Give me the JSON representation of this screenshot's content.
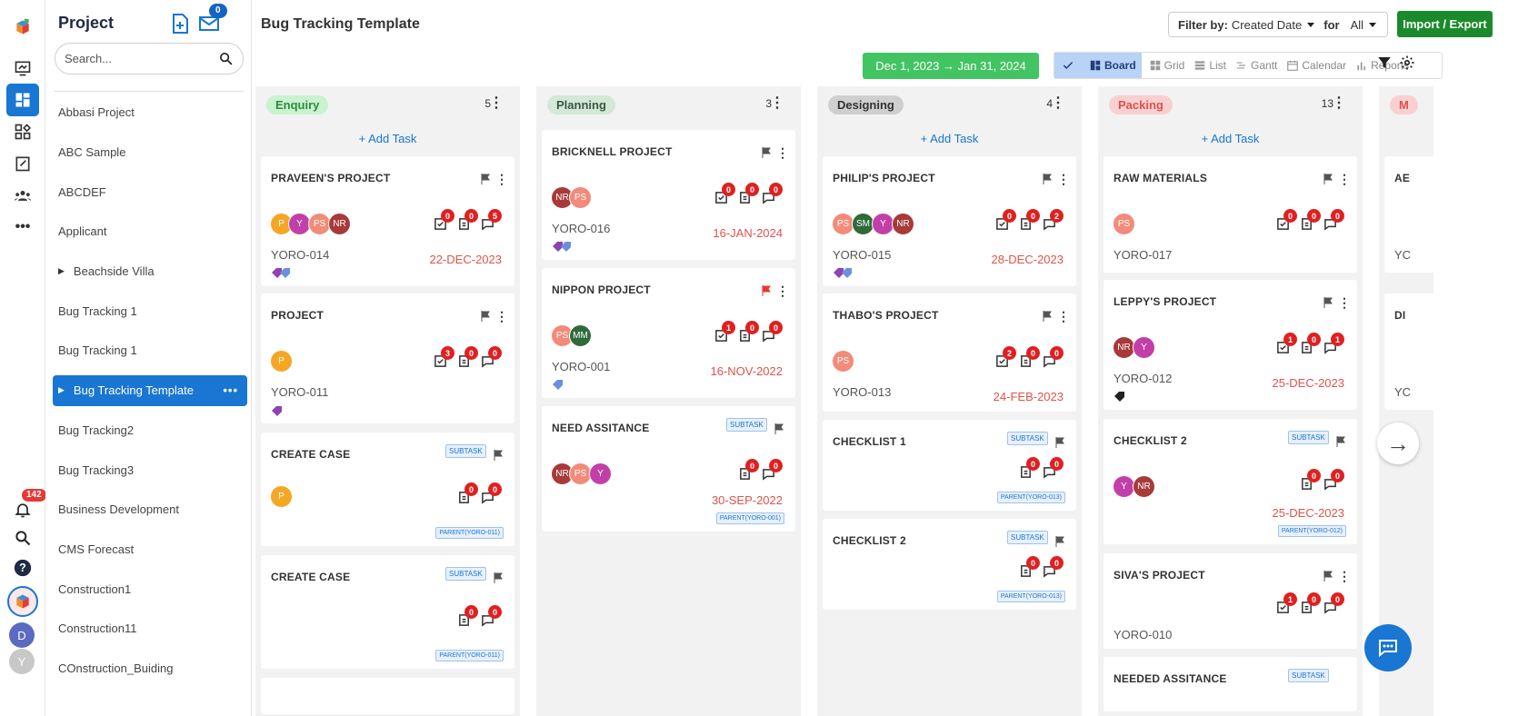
{
  "rail": {
    "notification_count": "142",
    "user_avatar_d": "D",
    "user_avatar_y": "Y"
  },
  "sidebar": {
    "title": "Project",
    "mail_count": "0",
    "search_placeholder": "Search...",
    "projects": [
      {
        "label": "Abbasi Project",
        "expandable": false
      },
      {
        "label": "ABC Sample",
        "expandable": false
      },
      {
        "label": "ABCDEF",
        "expandable": false
      },
      {
        "label": "Applicant",
        "expandable": false
      },
      {
        "label": "Beachside Villa",
        "expandable": true
      },
      {
        "label": "Bug Tracking 1",
        "expandable": false
      },
      {
        "label": "Bug Tracking 1",
        "expandable": false
      },
      {
        "label": "Bug Tracking Template",
        "expandable": true,
        "active": true
      },
      {
        "label": "Bug Tracking2",
        "expandable": false
      },
      {
        "label": "Bug Tracking3",
        "expandable": false
      },
      {
        "label": "Business Development",
        "expandable": false
      },
      {
        "label": "CMS Forecast",
        "expandable": false
      },
      {
        "label": "Construction1",
        "expandable": false
      },
      {
        "label": "Construction11",
        "expandable": false
      },
      {
        "label": "COnstruction_Buiding",
        "expandable": false
      }
    ]
  },
  "header": {
    "title": "Bug Tracking Template",
    "filter_label": "Filter by:",
    "filter_value": "Created Date",
    "for_label": "for",
    "for_value": "All",
    "import_export": "Import / Export",
    "date_range": "Dec 1, 2023  →  Jan 31, 2024",
    "views": [
      "Board",
      "Grid",
      "List",
      "Gantt",
      "Calendar",
      "Reports"
    ],
    "active_view": "Board"
  },
  "columns": [
    {
      "name": "Enquiry",
      "count": "5",
      "pill_bg": "#c9f2cf",
      "pill_fg": "#2e8b3d"
    },
    {
      "name": "Planning",
      "count": "3",
      "pill_bg": "#d3e8d6",
      "pill_fg": "#3a5a40"
    },
    {
      "name": "Designing",
      "count": "4",
      "pill_bg": "#cfcfcf",
      "pill_fg": "#333333"
    },
    {
      "name": "Packing",
      "count": "13",
      "pill_bg": "#f9d0d0",
      "pill_fg": "#d9534f"
    }
  ],
  "add_task_label": "+ Add Task",
  "subtask_label": "SUBTASK",
  "cards": {
    "c1": {
      "title": "PRAVEEN'S PROJECT",
      "code": "YORO-014",
      "date": "22-DEC-2023",
      "counts": [
        "0",
        "0",
        "5"
      ],
      "avatars": [
        "P",
        "Y",
        "PS",
        "NR"
      ]
    },
    "c2": {
      "title": "PROJECT",
      "code": "YORO-011",
      "counts": [
        "3",
        "0",
        "0"
      ],
      "avatars": [
        "P"
      ]
    },
    "c3": {
      "title": "CREATE CASE",
      "parent": "PARENT(YORO-011)",
      "counts": [
        "0",
        "0"
      ],
      "avatars": [
        "P"
      ]
    },
    "c4": {
      "title": "CREATE CASE",
      "parent": "PARENT(YORO-011)",
      "counts": [
        "0",
        "0"
      ]
    },
    "p1": {
      "title": "BRICKNELL PROJECT",
      "code": "YORO-016",
      "date": "16-JAN-2024",
      "counts": [
        "0",
        "0",
        "0"
      ],
      "avatars": [
        "NR",
        "PS"
      ]
    },
    "p2": {
      "title": "NIPPON PROJECT",
      "code": "YORO-001",
      "date": "16-NOV-2022",
      "counts": [
        "1",
        "0",
        "0"
      ],
      "avatars": [
        "PS",
        "MM"
      ]
    },
    "p3": {
      "title": "NEED ASSITANCE",
      "date": "30-SEP-2022",
      "parent": "PARENT(YORO-001)",
      "counts": [
        "0",
        "0"
      ],
      "avatars": [
        "NR",
        "PS",
        "Y"
      ]
    },
    "d1": {
      "title": "PHILIP'S PROJECT",
      "code": "YORO-015",
      "date": "28-DEC-2023",
      "counts": [
        "0",
        "0",
        "2"
      ],
      "avatars": [
        "PS",
        "SM",
        "Y",
        "NR"
      ]
    },
    "d2": {
      "title": "THABO'S PROJECT",
      "code": "YORO-013",
      "date": "24-FEB-2023",
      "counts": [
        "2",
        "0",
        "0"
      ],
      "avatars": [
        "PS"
      ]
    },
    "d3": {
      "title": "CHECKLIST 1",
      "parent": "PARENT(YORO-013)",
      "counts": [
        "0",
        "0"
      ]
    },
    "d4": {
      "title": "CHECKLIST 2",
      "parent": "PARENT(YORO-013)",
      "counts": [
        "0",
        "0"
      ]
    },
    "k1": {
      "title": "RAW MATERIALS",
      "code": "YORO-017",
      "counts": [
        "0",
        "0",
        "0"
      ],
      "avatars": [
        "PS"
      ]
    },
    "k2": {
      "title": "LEPPY'S PROJECT",
      "code": "YORO-012",
      "date": "25-DEC-2023",
      "counts": [
        "1",
        "0",
        "1"
      ],
      "avatars": [
        "NR",
        "Y"
      ]
    },
    "k3": {
      "title": "CHECKLIST 2",
      "date": "25-DEC-2023",
      "parent": "PARENT(YORO-012)",
      "counts": [
        "0",
        "0"
      ],
      "avatars": [
        "Y",
        "NR"
      ]
    },
    "k4": {
      "title": "SIVA'S PROJECT",
      "code": "YORO-010",
      "counts": [
        "1",
        "0",
        "0"
      ]
    },
    "k5": {
      "title": "NEEDED ASSITANCE"
    }
  },
  "peek_column": {
    "pill": "M",
    "c1": "AE",
    "c1_code": "YC",
    "c2": "DI",
    "c2_code": "YC"
  }
}
